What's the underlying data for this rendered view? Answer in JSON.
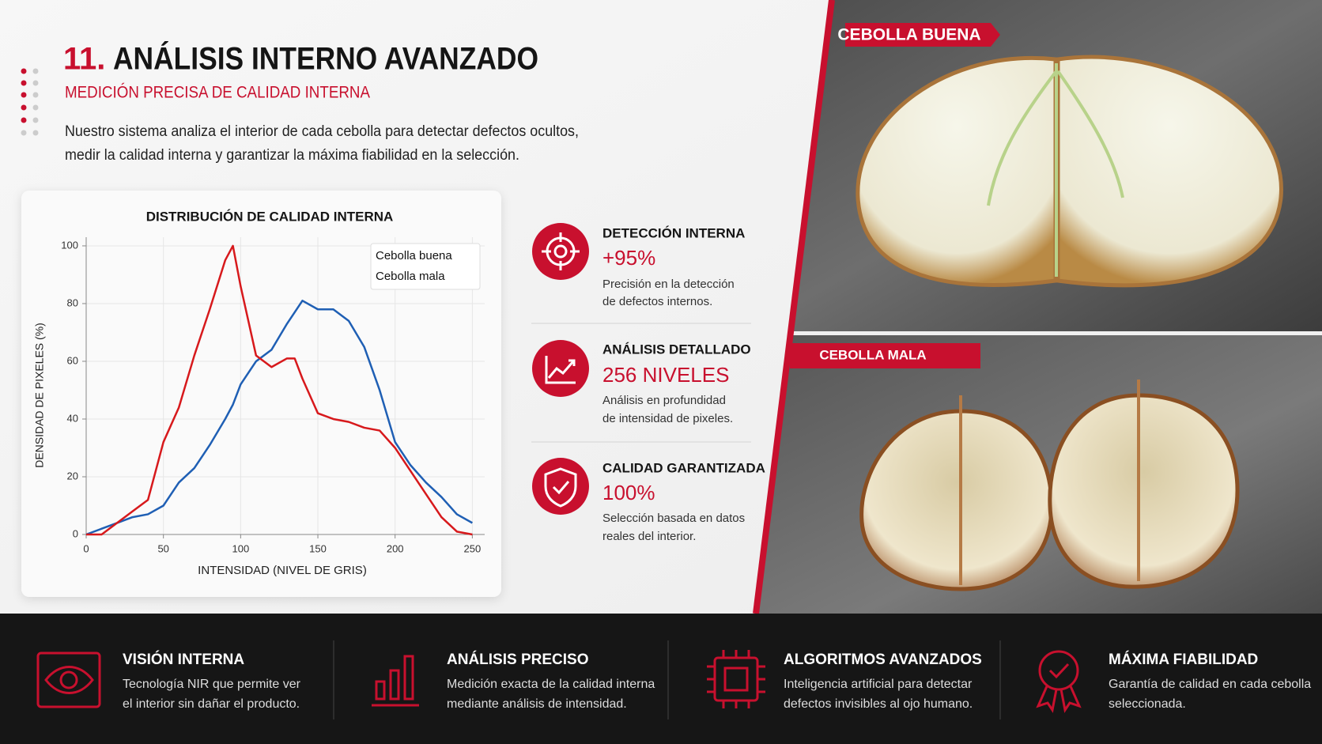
{
  "header": {
    "number": "11.",
    "title": "ANÁLISIS INTERNO AVANZADO",
    "subtitle": "MEDICIÓN PRECISA DE CALIDAD INTERNA",
    "description": [
      "Nuestro sistema analiza el interior de cada cebolla para detectar defectos ocultos,",
      "medir la calidad interna y garantizar la máxima fiabilidad en la selección."
    ]
  },
  "chart_data": {
    "type": "line",
    "title": "DISTRIBUCIÓN DE CALIDAD INTERNA",
    "x_label": "INTENSIDAD (NIVEL DE GRIS)",
    "y_label": "DENSIDAD DE PIXELES (%)",
    "x": [
      0,
      10,
      20,
      30,
      40,
      50,
      60,
      70,
      80,
      90,
      95,
      100,
      110,
      120,
      130,
      135,
      140,
      150,
      160,
      170,
      180,
      190,
      200,
      210,
      220,
      230,
      240,
      250
    ],
    "series": [
      {
        "name": "Cebolla buena",
        "color": "#1f5fb4",
        "values": [
          0,
          2,
          4,
          6,
          7,
          10,
          18,
          23,
          31,
          40,
          45,
          52,
          60,
          64,
          73,
          77,
          81,
          78,
          78,
          74,
          65,
          50,
          32,
          24,
          18,
          13,
          7,
          4
        ]
      },
      {
        "name": "Cebolla mala",
        "color": "#d7191c",
        "values": [
          0,
          0,
          4,
          8,
          12,
          32,
          44,
          62,
          78,
          95,
          100,
          86,
          62,
          58,
          61,
          61,
          54,
          42,
          40,
          39,
          37,
          36,
          30,
          22,
          14,
          6,
          1,
          0
        ]
      }
    ],
    "xlim": [
      0,
      258
    ],
    "ylim": [
      0,
      103
    ],
    "xticks": [
      0,
      50,
      100,
      150,
      200,
      250
    ],
    "yticks": [
      0,
      20,
      40,
      60,
      80,
      100
    ],
    "grid": true,
    "legend": "upper right"
  },
  "stats": [
    {
      "title": "DETECCIÓN INTERNA",
      "value": "+95%",
      "text": [
        "Precisión en la detección",
        "de defectos internos."
      ]
    },
    {
      "title": "ANÁLISIS DETALLADO",
      "value": "256 NIVELES",
      "text": [
        "Análisis en profundidad",
        "de intensidad de pixeles."
      ]
    },
    {
      "title": "CALIDAD GARANTIZADA",
      "value": "100%",
      "text": [
        "Selección basada en datos",
        "reales del interior."
      ]
    }
  ],
  "photos": [
    {
      "label": "CEBOLLA BUENA"
    },
    {
      "label": "CEBOLLA MALA"
    }
  ],
  "features": [
    {
      "title": "VISIÓN INTERNA",
      "text": [
        "Tecnología NIR que permite ver",
        "el interior sin dañar el producto."
      ]
    },
    {
      "title": "ANÁLISIS PRECISO",
      "text": [
        "Medición exacta de la calidad interna",
        "mediante análisis de intensidad."
      ]
    },
    {
      "title": "ALGORITMOS AVANZADOS",
      "text": [
        "Inteligencia artificial para detectar",
        "defectos invisibles al ojo humano."
      ]
    },
    {
      "title": "MÁXIMA FIABILIDAD",
      "text": [
        "Garantía de calidad en cada cebolla",
        "seleccionada."
      ]
    }
  ]
}
